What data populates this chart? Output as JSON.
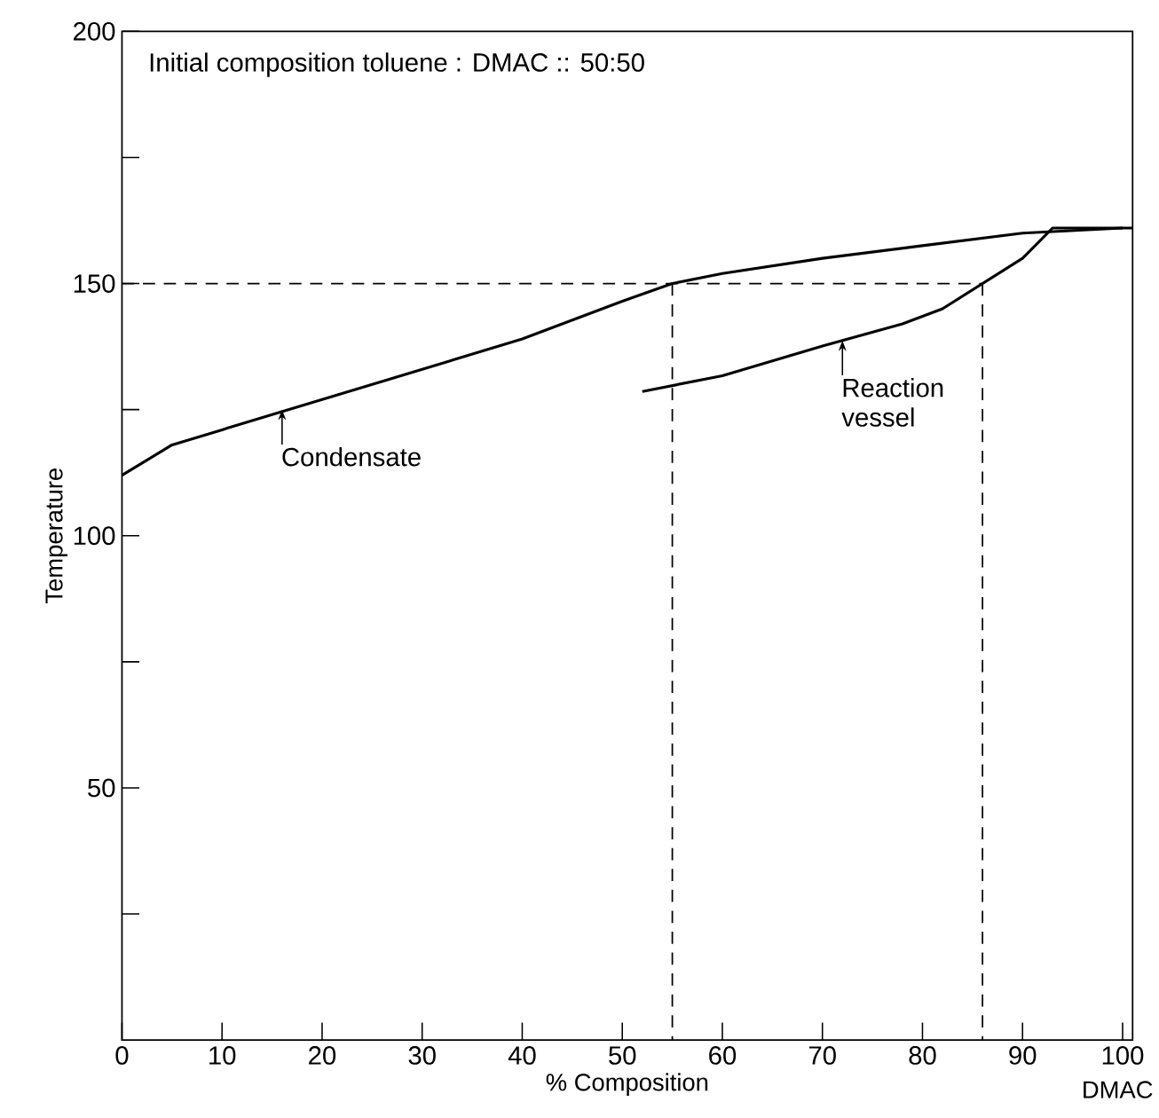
{
  "chart_data": {
    "type": "line",
    "title": "Initial composition toluene : DMAC :: 50:50",
    "xlabel": "% Composition",
    "ylabel": "Temperature",
    "xlim": [
      0,
      101
    ],
    "ylim": [
      0,
      200
    ],
    "xticks": [
      0,
      10,
      20,
      30,
      40,
      50,
      60,
      70,
      80,
      90,
      100
    ],
    "yticks": [
      {
        "value": 25,
        "label": null
      },
      50,
      {
        "value": 75,
        "label": null
      },
      100,
      {
        "value": 125,
        "label": null
      },
      150,
      {
        "value": 175,
        "label": null
      },
      200
    ],
    "grid": false,
    "marker": "none",
    "series": [
      {
        "color": "#000000",
        "line_style": "solid",
        "x": [
          0,
          5,
          10,
          20,
          30,
          40,
          50,
          55,
          60,
          70,
          80,
          90,
          100,
          101
        ],
        "values": [
          112,
          118,
          121,
          127,
          133,
          139,
          146.5,
          150,
          152,
          155,
          157.5,
          160,
          161,
          161
        ]
      },
      {
        "color": "#000000",
        "line_style": "solid",
        "x": [
          52,
          60,
          70,
          78,
          82,
          86,
          90,
          93,
          100
        ],
        "values": [
          128.6,
          131.7,
          137.6,
          142,
          145,
          150,
          155,
          161,
          161
        ]
      },
      {
        "color": "#000000",
        "line_style": "dashed",
        "x": [
          0,
          86
        ],
        "values": [
          150,
          150
        ]
      },
      {
        "color": "#000000",
        "line_style": "dashed",
        "x": [
          55,
          55
        ],
        "values": [
          150,
          0
        ]
      },
      {
        "color": "#000000",
        "line_style": "dashed",
        "x": [
          86,
          86
        ],
        "values": [
          150,
          0
        ]
      }
    ],
    "annotations": [
      {
        "text": "Condensate",
        "x": 16,
        "y": 125
      },
      {
        "text": "Reaction vessel",
        "x": 72,
        "y": 138.7
      },
      "DMAC"
    ]
  }
}
